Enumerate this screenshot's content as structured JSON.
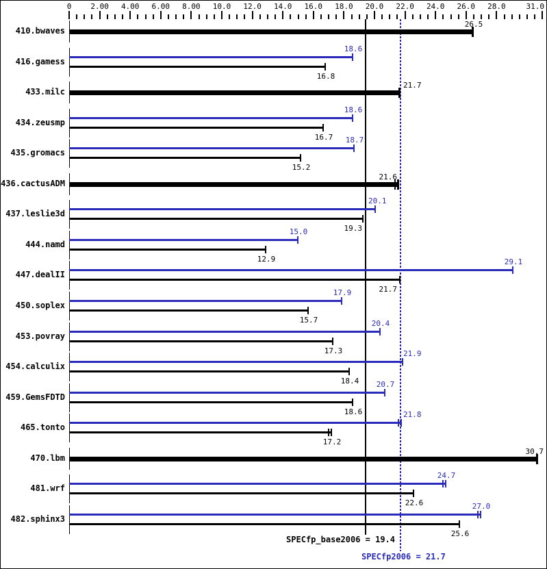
{
  "page": {
    "background": "#ffffff",
    "border_color": "#000000"
  },
  "chart_data": {
    "type": "bar",
    "orientation": "horizontal",
    "title": "",
    "xlabel": "",
    "ylabel": "",
    "grid": false,
    "legend": false,
    "colors": {
      "base": "#000000",
      "peak": "#2b2bbb"
    },
    "axis": {
      "min": 0,
      "max": 31,
      "minor_step": 0.5,
      "major_ticks": [
        {
          "v": 0,
          "label": "0"
        },
        {
          "v": 2,
          "label": "2.00"
        },
        {
          "v": 4,
          "label": "4.00"
        },
        {
          "v": 6,
          "label": "6.00"
        },
        {
          "v": 8,
          "label": "8.00"
        },
        {
          "v": 10,
          "label": "10.0"
        },
        {
          "v": 12,
          "label": "12.0"
        },
        {
          "v": 14,
          "label": "14.0"
        },
        {
          "v": 16,
          "label": "16.0"
        },
        {
          "v": 18,
          "label": "18.0"
        },
        {
          "v": 20,
          "label": "20.0"
        },
        {
          "v": 22,
          "label": "22.0"
        },
        {
          "v": 24,
          "label": "24.0"
        },
        {
          "v": 26,
          "label": "26.0"
        },
        {
          "v": 28,
          "label": "28.0"
        },
        {
          "v": 31,
          "label": "31.0"
        }
      ]
    },
    "reference_lines": [
      {
        "name": "SPECfp_base2006",
        "value": 19.4,
        "style": "solid",
        "color": "#000000"
      },
      {
        "name": "SPECfp2006",
        "value": 21.7,
        "style": "dotted",
        "color": "#2b2bbb"
      }
    ],
    "footer": {
      "base_text": "SPECfp_base2006 = 19.4",
      "peak_text": "SPECfp2006 = 21.7"
    },
    "categories": [
      "410.bwaves",
      "416.gamess",
      "433.milc",
      "434.zeusmp",
      "435.gromacs",
      "436.cactusADM",
      "437.leslie3d",
      "444.namd",
      "447.dealII",
      "450.soplex",
      "453.povray",
      "454.calculix",
      "459.GemsFDTD",
      "465.tonto",
      "470.lbm",
      "481.wrf",
      "482.sphinx3"
    ],
    "series": [
      {
        "name": "peak",
        "values": [
          null,
          18.6,
          null,
          18.6,
          18.7,
          null,
          20.1,
          15.0,
          29.1,
          17.9,
          20.4,
          21.9,
          20.7,
          21.8,
          null,
          24.7,
          27.0
        ]
      },
      {
        "name": "base",
        "values": [
          26.5,
          16.8,
          21.7,
          16.7,
          15.2,
          21.6,
          19.3,
          12.9,
          21.7,
          15.7,
          17.3,
          18.4,
          18.6,
          17.2,
          30.7,
          22.6,
          25.6
        ]
      }
    ],
    "rows": [
      {
        "name": "410.bwaves",
        "bars": [
          {
            "series": "base",
            "value": 26.5,
            "thick": true,
            "align": "c"
          }
        ]
      },
      {
        "name": "416.gamess",
        "bars": [
          {
            "series": "peak",
            "value": 18.6,
            "align": "c"
          },
          {
            "series": "base",
            "value": 16.8,
            "align": "c"
          }
        ]
      },
      {
        "name": "433.milc",
        "bars": [
          {
            "series": "base",
            "value": 21.7,
            "thick": true,
            "align": "r"
          }
        ]
      },
      {
        "name": "434.zeusmp",
        "bars": [
          {
            "series": "peak",
            "value": 18.6,
            "align": "c"
          },
          {
            "series": "base",
            "value": 16.7,
            "align": "c"
          }
        ]
      },
      {
        "name": "435.gromacs",
        "bars": [
          {
            "series": "peak",
            "value": 18.7,
            "align": "c"
          },
          {
            "series": "base",
            "value": 15.2,
            "align": "c"
          }
        ]
      },
      {
        "name": "436.cactusADM",
        "bars": [
          {
            "series": "base",
            "value": 21.6,
            "thick": true,
            "align": "l",
            "double_cap": true
          }
        ]
      },
      {
        "name": "437.leslie3d",
        "bars": [
          {
            "series": "peak",
            "value": 20.1,
            "align": "r"
          },
          {
            "series": "base",
            "value": 19.3,
            "align": "l"
          }
        ]
      },
      {
        "name": "444.namd",
        "bars": [
          {
            "series": "peak",
            "value": 15.0,
            "align": "c"
          },
          {
            "series": "base",
            "value": 12.9,
            "align": "c"
          }
        ]
      },
      {
        "name": "447.dealII",
        "bars": [
          {
            "series": "peak",
            "value": 29.1,
            "align": "c"
          },
          {
            "series": "base",
            "value": 21.7,
            "align": "l"
          }
        ]
      },
      {
        "name": "450.soplex",
        "bars": [
          {
            "series": "peak",
            "value": 17.9,
            "align": "c"
          },
          {
            "series": "base",
            "value": 15.7,
            "align": "c"
          }
        ]
      },
      {
        "name": "453.povray",
        "bars": [
          {
            "series": "peak",
            "value": 20.4,
            "align": "c"
          },
          {
            "series": "base",
            "value": 17.3,
            "align": "c"
          }
        ]
      },
      {
        "name": "454.calculix",
        "bars": [
          {
            "series": "peak",
            "value": 21.9,
            "align": "r"
          },
          {
            "series": "base",
            "value": 18.4,
            "align": "c"
          }
        ]
      },
      {
        "name": "459.GemsFDTD",
        "bars": [
          {
            "series": "peak",
            "value": 20.7,
            "align": "c"
          },
          {
            "series": "base",
            "value": 18.6,
            "align": "c"
          }
        ]
      },
      {
        "name": "465.tonto",
        "bars": [
          {
            "series": "peak",
            "value": 21.8,
            "align": "r",
            "double_cap": true
          },
          {
            "series": "base",
            "value": 17.2,
            "align": "c",
            "double_cap": true
          }
        ]
      },
      {
        "name": "470.lbm",
        "bars": [
          {
            "series": "base",
            "value": 30.7,
            "thick": true,
            "align": "c"
          }
        ]
      },
      {
        "name": "481.wrf",
        "bars": [
          {
            "series": "peak",
            "value": 24.7,
            "align": "c",
            "double_cap": true
          },
          {
            "series": "base",
            "value": 22.6,
            "align": "c"
          }
        ]
      },
      {
        "name": "482.sphinx3",
        "bars": [
          {
            "series": "peak",
            "value": 27.0,
            "align": "c",
            "double_cap": true
          },
          {
            "series": "base",
            "value": 25.6,
            "align": "c"
          }
        ]
      }
    ]
  }
}
